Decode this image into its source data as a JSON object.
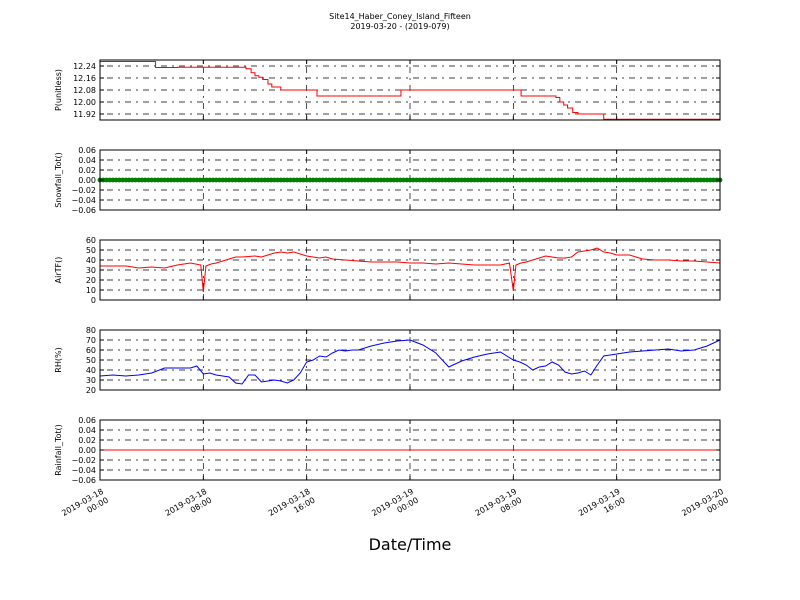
{
  "header": {
    "title": "Site14_Haber_Coney_Island_Fifteen",
    "subtitle": "2019-03-20 - (2019-079)"
  },
  "xlabel": "Date/Time",
  "colors": {
    "pressure": "#ff0000",
    "snowfall": "#008000",
    "airtemp": "#ff0000",
    "rh": "#0000ff",
    "rainfall": "#ff0000",
    "axis": "#000000",
    "grid": "#000000"
  },
  "chart_data": [
    {
      "type": "line",
      "ylabel": "P(unitless)",
      "ylim": [
        11.88,
        12.28
      ],
      "yticks": [
        "12.24",
        "12.16",
        "12.08",
        "12.00",
        "11.92"
      ],
      "ytick_values": [
        12.24,
        12.16,
        12.08,
        12.0,
        11.92
      ],
      "xlim": [
        0,
        48
      ],
      "xticks": [
        0,
        8,
        16,
        24,
        32,
        40,
        48
      ],
      "xtick_labels": [
        [
          "2019-03-18",
          "00:00"
        ],
        [
          "2019-03-18",
          "08:00"
        ],
        [
          "2019-03-18",
          "16:00"
        ],
        [
          "2019-03-19",
          "00:00"
        ],
        [
          "2019-03-19",
          "08:00"
        ],
        [
          "2019-03-19",
          "16:00"
        ],
        [
          "2019-03-20",
          "00:00"
        ]
      ],
      "grid": true,
      "series": [
        {
          "color": "#ff0000",
          "step": true,
          "x": [
            0,
            4,
            4.3,
            5,
            6,
            11,
            11.3,
            11.7,
            12,
            12.3,
            12.6,
            13,
            13.3,
            13.8,
            14,
            14.5,
            16.5,
            16.8,
            23,
            23.3,
            24,
            28,
            32,
            32.3,
            32.6,
            35,
            35.3,
            35.6,
            35.9,
            36.2,
            36.6,
            37,
            38.7,
            39,
            39.5,
            40,
            48
          ],
          "y": [
            12.27,
            12.27,
            12.23,
            12.23,
            12.232,
            12.232,
            12.222,
            12.195,
            12.175,
            12.165,
            12.15,
            12.12,
            12.1,
            12.1,
            12.08,
            12.08,
            12.08,
            12.04,
            12.04,
            12.08,
            12.08,
            12.08,
            12.08,
            12.08,
            12.04,
            12.04,
            12.03,
            12.0,
            11.98,
            11.96,
            11.93,
            11.92,
            11.92,
            11.885,
            11.885,
            11.885,
            11.89
          ]
        }
      ]
    },
    {
      "type": "scatter",
      "ylabel": "Snowfall_Tot()",
      "ylim": [
        -0.06,
        0.06
      ],
      "yticks": [
        "0.06",
        "0.04",
        "0.02",
        "0.00",
        "−0.02",
        "−0.04",
        "−0.06"
      ],
      "ytick_values": [
        0.06,
        0.04,
        0.02,
        0.0,
        -0.02,
        -0.04,
        -0.06
      ],
      "xlim": [
        0,
        48
      ],
      "grid": true,
      "series": [
        {
          "color": "#008000",
          "x_range": [
            0,
            48
          ],
          "x_step": 0.25,
          "constant_y": 0.0
        }
      ]
    },
    {
      "type": "line",
      "ylabel": "AirTF()",
      "ylim": [
        0,
        60
      ],
      "yticks": [
        "60",
        "50",
        "40",
        "30",
        "20",
        "10",
        "0"
      ],
      "ytick_values": [
        60,
        50,
        40,
        30,
        20,
        10,
        0
      ],
      "xlim": [
        0,
        48
      ],
      "grid": true,
      "series": [
        {
          "color": "#ff0000",
          "x": [
            0,
            1,
            2,
            3,
            4,
            5,
            6,
            7,
            7.8,
            8.0,
            8.2,
            8.6,
            9,
            10,
            10.5,
            11,
            12,
            12.5,
            13,
            13.5,
            14,
            14.5,
            15,
            15.5,
            16,
            16.5,
            17,
            17.5,
            18,
            19,
            20,
            21,
            22,
            23,
            24,
            25,
            26,
            27,
            28,
            29,
            30,
            31,
            31.7,
            32.0,
            32.2,
            32.6,
            33,
            34,
            34.5,
            35,
            35.5,
            36,
            36.5,
            37,
            37.5,
            38,
            38.5,
            39,
            39.5,
            40,
            41,
            42,
            43,
            44,
            45,
            46,
            47,
            48
          ],
          "y": [
            34,
            34,
            34,
            32,
            33,
            32,
            35,
            37,
            35,
            8,
            34,
            36,
            37,
            41,
            43,
            43,
            44,
            43,
            45,
            47,
            48,
            47,
            48,
            46,
            44,
            43,
            42,
            43,
            41,
            40,
            39,
            38,
            38,
            38,
            37,
            37,
            36,
            37,
            36,
            35,
            35,
            35,
            37,
            9,
            35,
            37,
            38,
            42,
            44,
            43,
            42,
            42,
            43,
            48,
            49,
            50,
            52,
            48,
            47,
            45,
            45,
            41,
            40,
            40,
            39,
            39,
            38,
            37
          ]
        }
      ]
    },
    {
      "type": "line",
      "ylabel": "RH(%)",
      "ylim": [
        20,
        80
      ],
      "yticks": [
        "80",
        "70",
        "60",
        "50",
        "40",
        "30",
        "20"
      ],
      "ytick_values": [
        80,
        70,
        60,
        50,
        40,
        30,
        20
      ],
      "xlim": [
        0,
        48
      ],
      "grid": true,
      "series": [
        {
          "color": "#0000ff",
          "x": [
            0,
            1,
            2,
            3,
            4,
            5,
            6,
            7,
            7.5,
            8,
            8.5,
            9,
            10,
            10.5,
            11,
            11.5,
            12,
            12.5,
            13,
            13.5,
            14,
            14.5,
            15,
            15.5,
            16,
            16.5,
            17,
            17.5,
            18,
            18.5,
            19,
            19.5,
            20,
            21,
            22,
            23,
            24,
            25,
            26,
            27,
            28,
            29,
            30,
            31,
            32,
            32.5,
            33,
            33.5,
            34,
            34.5,
            35,
            35.5,
            36,
            36.5,
            37,
            37.5,
            38,
            38.5,
            39,
            39.5,
            40,
            40.5,
            41,
            42,
            43,
            44,
            45,
            46,
            47,
            48
          ],
          "y": [
            34,
            35,
            34,
            35,
            37,
            42,
            42,
            42,
            44,
            36,
            37,
            35,
            33,
            27,
            26,
            35,
            35,
            28,
            29,
            30,
            29,
            27,
            30,
            37,
            48,
            50,
            54,
            53,
            57,
            60,
            59,
            60,
            60,
            64,
            67,
            69,
            70,
            65,
            57,
            43,
            49,
            53,
            56,
            58,
            50,
            48,
            45,
            40,
            43,
            44,
            48,
            45,
            38,
            36,
            37,
            39,
            35,
            45,
            54,
            55,
            56,
            57,
            58,
            59,
            60,
            61,
            59,
            60,
            64,
            70
          ]
        }
      ]
    },
    {
      "type": "line",
      "ylabel": "Rainfall_Tot()",
      "ylim": [
        -0.06,
        0.06
      ],
      "yticks": [
        "0.06",
        "0.04",
        "0.02",
        "0.00",
        "−0.02",
        "−0.04",
        "−0.06"
      ],
      "ytick_values": [
        0.06,
        0.04,
        0.02,
        0.0,
        -0.02,
        -0.04,
        -0.06
      ],
      "xlim": [
        0,
        48
      ],
      "grid": true,
      "series": [
        {
          "color": "#ff0000",
          "x": [
            0,
            48
          ],
          "y": [
            0,
            0
          ]
        }
      ]
    }
  ]
}
